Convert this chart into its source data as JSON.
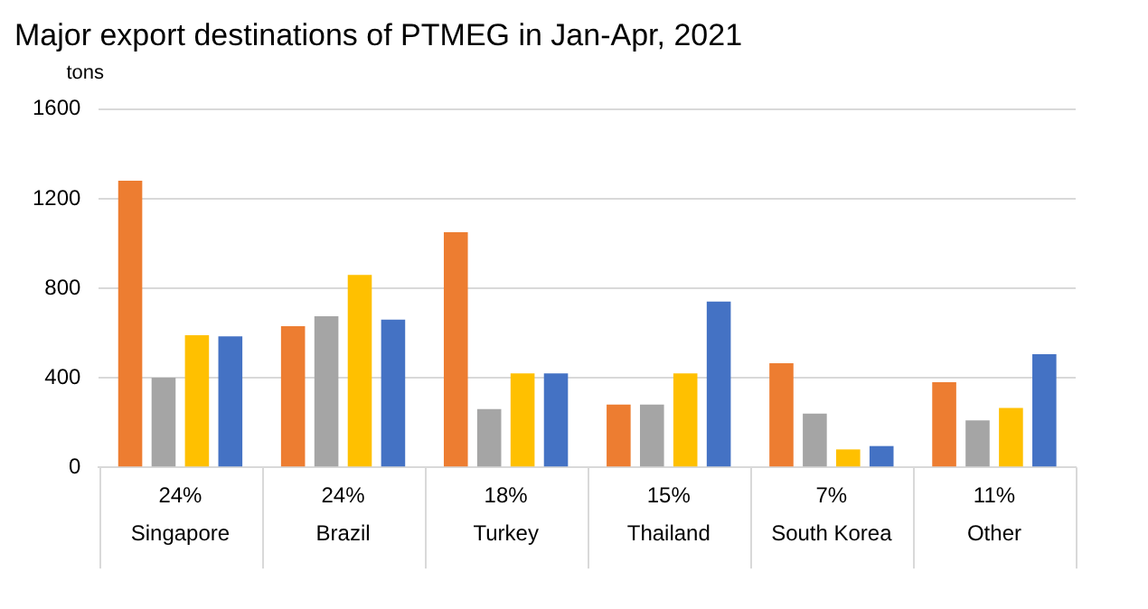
{
  "chart_data": {
    "type": "bar",
    "title": "Major export destinations of PTMEG in Jan-Apr, 2021",
    "ylabel": "tons",
    "categories": [
      "Singapore",
      "Brazil",
      "Turkey",
      "Thailand",
      "South Korea",
      "Other"
    ],
    "series": [
      {
        "color": "#ed7d31",
        "values": [
          1280,
          630,
          1050,
          280,
          465,
          380
        ]
      },
      {
        "color": "#a5a5a5",
        "values": [
          400,
          675,
          260,
          280,
          240,
          210
        ]
      },
      {
        "color": "#ffc000",
        "values": [
          590,
          860,
          420,
          420,
          80,
          265
        ]
      },
      {
        "color": "#4472c4",
        "values": [
          585,
          660,
          420,
          740,
          95,
          505
        ]
      }
    ],
    "ylim": [
      0,
      1600
    ],
    "yticks": [
      0,
      400,
      800,
      1200,
      1600
    ],
    "grid": "y",
    "legend": false,
    "annotations": [
      "24%",
      "24%",
      "18%",
      "15%",
      "7%",
      "11%"
    ]
  }
}
